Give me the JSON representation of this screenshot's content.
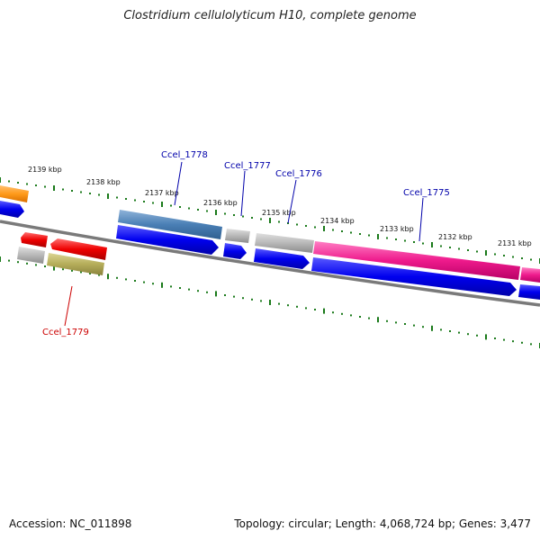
{
  "title": "Clostridium cellulolyticum H10, complete genome",
  "footer": {
    "accession": "Accession: NC_011898",
    "summary": "Topology: circular; Length: 4,068,724 bp; Genes: 3,477"
  },
  "scale_labels": [
    "2139 kbp",
    "2138 kbp",
    "2137 kbp",
    "2136 kbp",
    "2135 kbp",
    "2134 kbp",
    "2133 kbp",
    "2132 kbp",
    "2131 kbp"
  ],
  "gene_labels": [
    {
      "text": "Ccel_1778",
      "color": "#0000aa"
    },
    {
      "text": "Ccel_1777",
      "color": "#0000aa"
    },
    {
      "text": "Ccel_1776",
      "color": "#0000aa"
    },
    {
      "text": "Ccel_1775",
      "color": "#0000aa"
    },
    {
      "text": "Ccel_1779",
      "color": "#cc0000"
    }
  ],
  "colors": {
    "backbone": "#7a7a7a",
    "ticks": "#1a7a1a",
    "cds": "#0000ee",
    "steelblue": "#4a7fb5",
    "gray": "#b8b8b8",
    "pink": "#ee1a8c",
    "red": "#ee0000",
    "olive": "#b5ad5a",
    "orange": "#ff9a1a"
  }
}
